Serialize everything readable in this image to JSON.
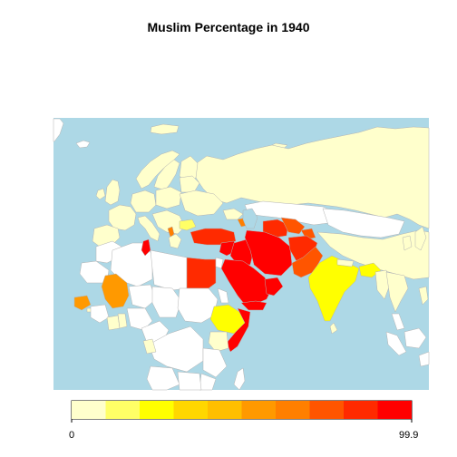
{
  "title": "Muslim Percentage in 1940",
  "legend": {
    "min_label": "0",
    "max_label": "99.9",
    "colors": [
      "#ffffcc",
      "#ffff66",
      "#ffff00",
      "#ffd700",
      "#ffbf00",
      "#ff9900",
      "#ff7f00",
      "#ff5500",
      "#ff2a00",
      "#ff0000"
    ]
  },
  "colors": {
    "ocean": "#add8e6",
    "land_no_data": "#ffffff",
    "border": "#b3b3b3"
  }
}
